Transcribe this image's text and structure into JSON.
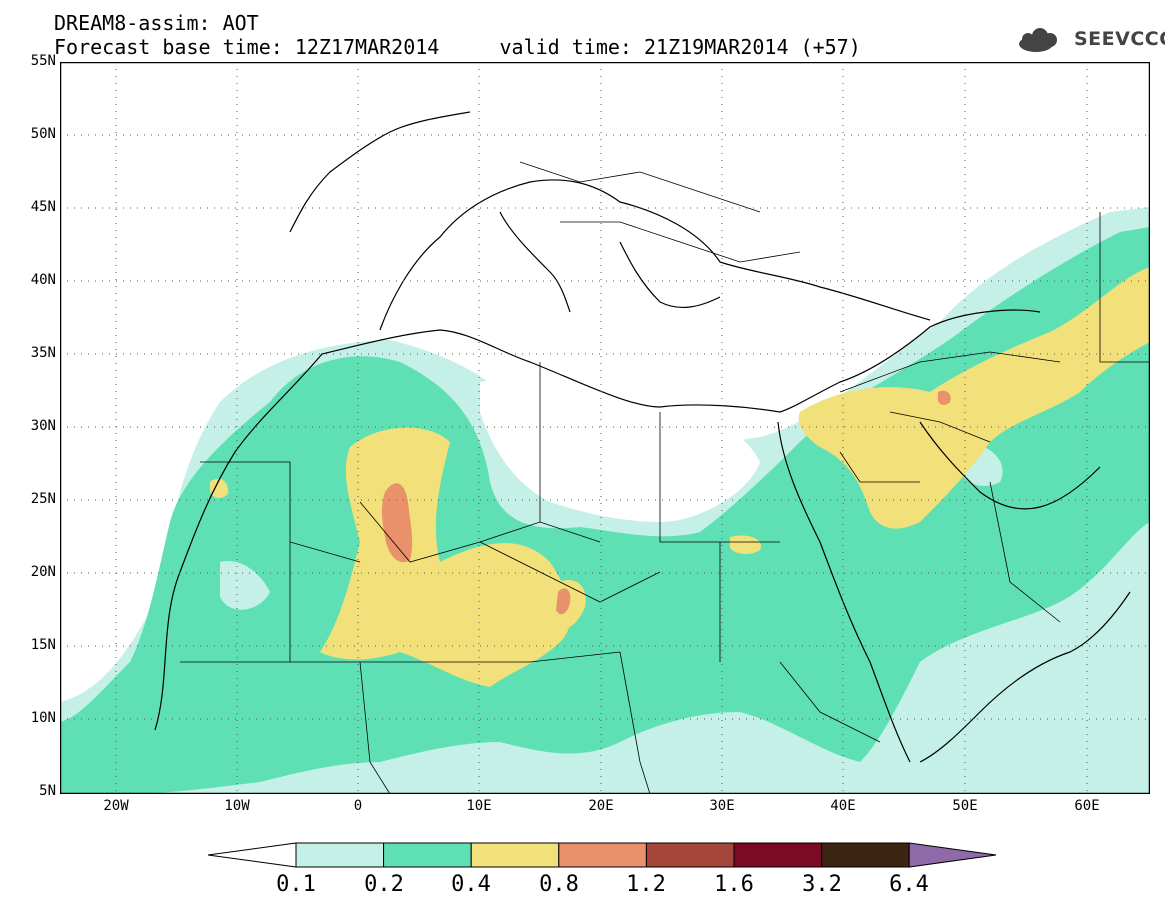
{
  "header": {
    "title_line1": "DREAM8-assim: AOT",
    "title_line2": "Forecast base time: 12Z17MAR2014     valid time: 21Z19MAR2014 (+57)"
  },
  "logo": {
    "text": "SEEVCCC",
    "icon": "cloud-icon"
  },
  "map": {
    "lon_range": [
      -25,
      65
    ],
    "lat_range": [
      5,
      55
    ],
    "lat_labels": [
      "55N",
      "50N",
      "45N",
      "40N",
      "35N",
      "30N",
      "25N",
      "20N",
      "15N",
      "10N",
      "5N"
    ],
    "lon_labels": [
      "20W",
      "10W",
      "0",
      "10E",
      "20E",
      "30E",
      "40E",
      "50E",
      "60E"
    ],
    "gridlines": "dotted"
  },
  "colorbar": {
    "levels": [
      "0.1",
      "0.2",
      "0.4",
      "0.8",
      "1.2",
      "1.6",
      "3.2",
      "6.4"
    ],
    "colors": [
      "#ffffff",
      "#c4f0e8",
      "#5fe0b4",
      "#f2e17a",
      "#e8916a",
      "#a5463a",
      "#7a0a26",
      "#3b2412",
      "#8e6aa8"
    ]
  }
}
